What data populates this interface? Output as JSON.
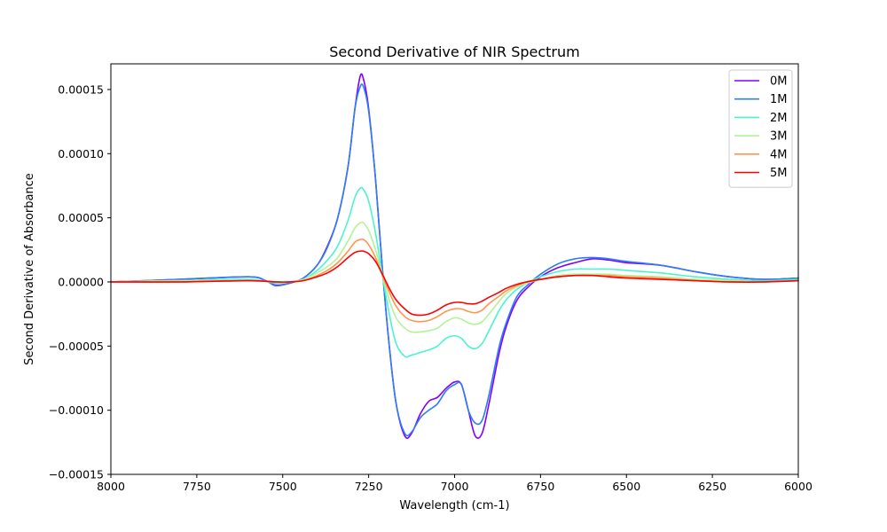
{
  "chart_data": {
    "type": "line",
    "title": "Second Derivative of NIR Spectrum",
    "xlabel": "Wavelength (cm-1)",
    "ylabel": "Second Derivative of Absorbance",
    "xlim": [
      8000,
      6000
    ],
    "ylim": [
      -0.00015,
      0.00017
    ],
    "x_reversed": true,
    "grid": false,
    "legend_position": "top-right",
    "xticks": [
      8000,
      7750,
      7500,
      7250,
      7000,
      6750,
      6500,
      6250,
      6000
    ],
    "xtick_labels": [
      "8000",
      "7750",
      "7500",
      "7250",
      "7000",
      "6750",
      "6500",
      "6250",
      "6000"
    ],
    "yticks": [
      -0.00015,
      -0.0001,
      -5e-05,
      0.0,
      5e-05,
      0.0001,
      0.00015
    ],
    "ytick_labels": [
      "−0.00015",
      "−0.00010",
      "−0.00005",
      "0.00000",
      "0.00005",
      "0.00010",
      "0.00015"
    ],
    "series": [
      {
        "name": "0M",
        "color": "#8000ff",
        "points": [
          [
            8000,
            0
          ],
          [
            7800,
            2e-06
          ],
          [
            7600,
            4e-06
          ],
          [
            7550,
            1e-06
          ],
          [
            7520,
            -2.5e-06
          ],
          [
            7480,
            -1e-06
          ],
          [
            7440,
            3e-06
          ],
          [
            7400,
            1.3e-05
          ],
          [
            7370,
            2.8e-05
          ],
          [
            7340,
            5e-05
          ],
          [
            7310,
            9e-05
          ],
          [
            7290,
            0.000135
          ],
          [
            7275,
            0.00016
          ],
          [
            7265,
            0.000158
          ],
          [
            7250,
            0.000135
          ],
          [
            7230,
            8e-05
          ],
          [
            7210,
            1e-05
          ],
          [
            7190,
            -5e-05
          ],
          [
            7170,
            -9.5e-05
          ],
          [
            7145,
            -0.00012
          ],
          [
            7125,
            -0.000118
          ],
          [
            7100,
            -0.000103
          ],
          [
            7075,
            -9.3e-05
          ],
          [
            7050,
            -9e-05
          ],
          [
            7025,
            -8.3e-05
          ],
          [
            7000,
            -7.8e-05
          ],
          [
            6980,
            -8e-05
          ],
          [
            6960,
            -0.0001
          ],
          [
            6940,
            -0.00012
          ],
          [
            6920,
            -0.000118
          ],
          [
            6900,
            -9.5e-05
          ],
          [
            6870,
            -5.5e-05
          ],
          [
            6850,
            -3.5e-05
          ],
          [
            6820,
            -1.5e-05
          ],
          [
            6790,
            -5e-06
          ],
          [
            6750,
            4e-06
          ],
          [
            6700,
            1.1e-05
          ],
          [
            6650,
            1.5e-05
          ],
          [
            6600,
            1.8e-05
          ],
          [
            6550,
            1.7e-05
          ],
          [
            6500,
            1.5e-05
          ],
          [
            6400,
            1.3e-05
          ],
          [
            6300,
            8e-06
          ],
          [
            6200,
            4e-06
          ],
          [
            6100,
            2e-06
          ],
          [
            6000,
            3e-06
          ]
        ]
      },
      {
        "name": "1M",
        "color": "#2c7ef7",
        "points": [
          [
            8000,
            0
          ],
          [
            7800,
            2e-06
          ],
          [
            7600,
            4e-06
          ],
          [
            7550,
            1e-06
          ],
          [
            7520,
            -3e-06
          ],
          [
            7480,
            -1e-06
          ],
          [
            7440,
            3e-06
          ],
          [
            7400,
            1.3e-05
          ],
          [
            7370,
            2.7e-05
          ],
          [
            7340,
            5e-05
          ],
          [
            7310,
            9e-05
          ],
          [
            7290,
            0.000135
          ],
          [
            7275,
            0.000152
          ],
          [
            7265,
            0.000152
          ],
          [
            7250,
            0.000133
          ],
          [
            7230,
            8e-05
          ],
          [
            7210,
            1e-05
          ],
          [
            7190,
            -5e-05
          ],
          [
            7170,
            -9.5e-05
          ],
          [
            7145,
            -0.000118
          ],
          [
            7125,
            -0.000117
          ],
          [
            7100,
            -0.000106
          ],
          [
            7075,
            -0.0001
          ],
          [
            7050,
            -9.5e-05
          ],
          [
            7025,
            -8.5e-05
          ],
          [
            7000,
            -8e-05
          ],
          [
            6980,
            -8e-05
          ],
          [
            6960,
            -0.0001
          ],
          [
            6940,
            -0.00011
          ],
          [
            6920,
            -0.000108
          ],
          [
            6900,
            -8.8e-05
          ],
          [
            6870,
            -5e-05
          ],
          [
            6850,
            -3.2e-05
          ],
          [
            6820,
            -1.2e-05
          ],
          [
            6790,
            -3e-06
          ],
          [
            6750,
            6e-06
          ],
          [
            6700,
            1.4e-05
          ],
          [
            6650,
            1.8e-05
          ],
          [
            6600,
            1.9e-05
          ],
          [
            6550,
            1.8e-05
          ],
          [
            6500,
            1.6e-05
          ],
          [
            6400,
            1.3e-05
          ],
          [
            6300,
            8e-06
          ],
          [
            6200,
            4e-06
          ],
          [
            6100,
            2e-06
          ],
          [
            6000,
            3e-06
          ]
        ]
      },
      {
        "name": "2M",
        "color": "#4df3ce",
        "points": [
          [
            8000,
            0
          ],
          [
            7800,
            1e-06
          ],
          [
            7600,
            2e-06
          ],
          [
            7520,
            -1e-06
          ],
          [
            7480,
            0
          ],
          [
            7440,
            2e-06
          ],
          [
            7400,
            9e-06
          ],
          [
            7370,
            1.7e-05
          ],
          [
            7340,
            2.8e-05
          ],
          [
            7310,
            4.8e-05
          ],
          [
            7290,
            6.6e-05
          ],
          [
            7275,
            7.3e-05
          ],
          [
            7265,
            7.2e-05
          ],
          [
            7250,
            6.3e-05
          ],
          [
            7230,
            3.8e-05
          ],
          [
            7210,
            5e-06
          ],
          [
            7190,
            -2.5e-05
          ],
          [
            7170,
            -4.8e-05
          ],
          [
            7145,
            -5.8e-05
          ],
          [
            7125,
            -5.7e-05
          ],
          [
            7100,
            -5.5e-05
          ],
          [
            7075,
            -5.3e-05
          ],
          [
            7050,
            -5e-05
          ],
          [
            7025,
            -4.4e-05
          ],
          [
            7000,
            -4.2e-05
          ],
          [
            6980,
            -4.4e-05
          ],
          [
            6960,
            -5e-05
          ],
          [
            6940,
            -5.2e-05
          ],
          [
            6920,
            -4.8e-05
          ],
          [
            6900,
            -3.8e-05
          ],
          [
            6870,
            -2.2e-05
          ],
          [
            6850,
            -1.4e-05
          ],
          [
            6820,
            -6e-06
          ],
          [
            6790,
            -1e-06
          ],
          [
            6750,
            4e-06
          ],
          [
            6700,
            8e-06
          ],
          [
            6650,
            1e-05
          ],
          [
            6600,
            1e-05
          ],
          [
            6550,
            1e-05
          ],
          [
            6500,
            9e-06
          ],
          [
            6400,
            7e-06
          ],
          [
            6300,
            4e-06
          ],
          [
            6200,
            2e-06
          ],
          [
            6100,
            1e-06
          ],
          [
            6000,
            2e-06
          ]
        ]
      },
      {
        "name": "3M",
        "color": "#b2f396",
        "points": [
          [
            8000,
            0
          ],
          [
            7800,
            1e-06
          ],
          [
            7600,
            1e-06
          ],
          [
            7520,
            0
          ],
          [
            7480,
            0
          ],
          [
            7440,
            2e-06
          ],
          [
            7400,
            7e-06
          ],
          [
            7370,
            1.2e-05
          ],
          [
            7340,
            1.9e-05
          ],
          [
            7310,
            3.2e-05
          ],
          [
            7290,
            4.2e-05
          ],
          [
            7275,
            4.6e-05
          ],
          [
            7265,
            4.6e-05
          ],
          [
            7250,
            4e-05
          ],
          [
            7230,
            2.5e-05
          ],
          [
            7210,
            5e-06
          ],
          [
            7190,
            -1.4e-05
          ],
          [
            7170,
            -2.8e-05
          ],
          [
            7145,
            -3.6e-05
          ],
          [
            7125,
            -3.9e-05
          ],
          [
            7100,
            -3.9e-05
          ],
          [
            7075,
            -3.8e-05
          ],
          [
            7050,
            -3.6e-05
          ],
          [
            7025,
            -3.1e-05
          ],
          [
            7000,
            -2.8e-05
          ],
          [
            6980,
            -2.9e-05
          ],
          [
            6960,
            -3.2e-05
          ],
          [
            6940,
            -3.3e-05
          ],
          [
            6920,
            -3.1e-05
          ],
          [
            6900,
            -2.5e-05
          ],
          [
            6870,
            -1.5e-05
          ],
          [
            6850,
            -9e-06
          ],
          [
            6820,
            -4e-06
          ],
          [
            6790,
            -1e-06
          ],
          [
            6750,
            2e-06
          ],
          [
            6700,
            5e-06
          ],
          [
            6650,
            6e-06
          ],
          [
            6600,
            6e-06
          ],
          [
            6550,
            6e-06
          ],
          [
            6500,
            5e-06
          ],
          [
            6400,
            4e-06
          ],
          [
            6300,
            2e-06
          ],
          [
            6200,
            1e-06
          ],
          [
            6100,
            0
          ],
          [
            6000,
            1e-06
          ]
        ]
      },
      {
        "name": "4M",
        "color": "#ff954e",
        "points": [
          [
            8000,
            0
          ],
          [
            7800,
            0
          ],
          [
            7600,
            1e-06
          ],
          [
            7520,
            0
          ],
          [
            7480,
            0
          ],
          [
            7440,
            1e-06
          ],
          [
            7400,
            5e-06
          ],
          [
            7370,
            9e-06
          ],
          [
            7340,
            1.5e-05
          ],
          [
            7310,
            2.4e-05
          ],
          [
            7290,
            3.1e-05
          ],
          [
            7275,
            3.3e-05
          ],
          [
            7265,
            3.3e-05
          ],
          [
            7250,
            2.9e-05
          ],
          [
            7230,
            1.9e-05
          ],
          [
            7210,
            5e-06
          ],
          [
            7190,
            -8e-06
          ],
          [
            7170,
            -1.9e-05
          ],
          [
            7145,
            -2.7e-05
          ],
          [
            7125,
            -3e-05
          ],
          [
            7100,
            -3.1e-05
          ],
          [
            7075,
            -3e-05
          ],
          [
            7050,
            -2.7e-05
          ],
          [
            7025,
            -2.3e-05
          ],
          [
            7000,
            -2.1e-05
          ],
          [
            6980,
            -2.1e-05
          ],
          [
            6960,
            -2.3e-05
          ],
          [
            6940,
            -2.4e-05
          ],
          [
            6920,
            -2.2e-05
          ],
          [
            6900,
            -1.7e-05
          ],
          [
            6870,
            -1.1e-05
          ],
          [
            6850,
            -7e-06
          ],
          [
            6820,
            -3e-06
          ],
          [
            6790,
            0
          ],
          [
            6750,
            2e-06
          ],
          [
            6700,
            4e-06
          ],
          [
            6650,
            5e-06
          ],
          [
            6600,
            5e-06
          ],
          [
            6550,
            5e-06
          ],
          [
            6500,
            4e-06
          ],
          [
            6400,
            3e-06
          ],
          [
            6300,
            1e-06
          ],
          [
            6200,
            0
          ],
          [
            6100,
            0
          ],
          [
            6000,
            1e-06
          ]
        ]
      },
      {
        "name": "5M",
        "color": "#ff0000",
        "points": [
          [
            8000,
            0
          ],
          [
            7800,
            0
          ],
          [
            7600,
            1e-06
          ],
          [
            7520,
            0
          ],
          [
            7480,
            0
          ],
          [
            7440,
            1e-06
          ],
          [
            7400,
            4e-06
          ],
          [
            7370,
            7e-06
          ],
          [
            7340,
            1.2e-05
          ],
          [
            7310,
            1.9e-05
          ],
          [
            7290,
            2.3e-05
          ],
          [
            7275,
            2.4e-05
          ],
          [
            7265,
            2.4e-05
          ],
          [
            7250,
            2.2e-05
          ],
          [
            7230,
            1.6e-05
          ],
          [
            7210,
            6e-06
          ],
          [
            7190,
            -5e-06
          ],
          [
            7170,
            -1.4e-05
          ],
          [
            7145,
            -2.1e-05
          ],
          [
            7125,
            -2.5e-05
          ],
          [
            7100,
            -2.6e-05
          ],
          [
            7075,
            -2.5e-05
          ],
          [
            7050,
            -2.2e-05
          ],
          [
            7025,
            -1.8e-05
          ],
          [
            7000,
            -1.6e-05
          ],
          [
            6980,
            -1.6e-05
          ],
          [
            6960,
            -1.7e-05
          ],
          [
            6940,
            -1.7e-05
          ],
          [
            6920,
            -1.5e-05
          ],
          [
            6900,
            -1.2e-05
          ],
          [
            6870,
            -8e-06
          ],
          [
            6850,
            -5e-06
          ],
          [
            6820,
            -2e-06
          ],
          [
            6790,
            0
          ],
          [
            6750,
            2e-06
          ],
          [
            6700,
            4e-06
          ],
          [
            6650,
            5e-06
          ],
          [
            6600,
            5e-06
          ],
          [
            6550,
            4e-06
          ],
          [
            6500,
            3e-06
          ],
          [
            6400,
            2e-06
          ],
          [
            6300,
            1e-06
          ],
          [
            6200,
            0
          ],
          [
            6100,
            0
          ],
          [
            6000,
            1e-06
          ]
        ]
      }
    ]
  }
}
